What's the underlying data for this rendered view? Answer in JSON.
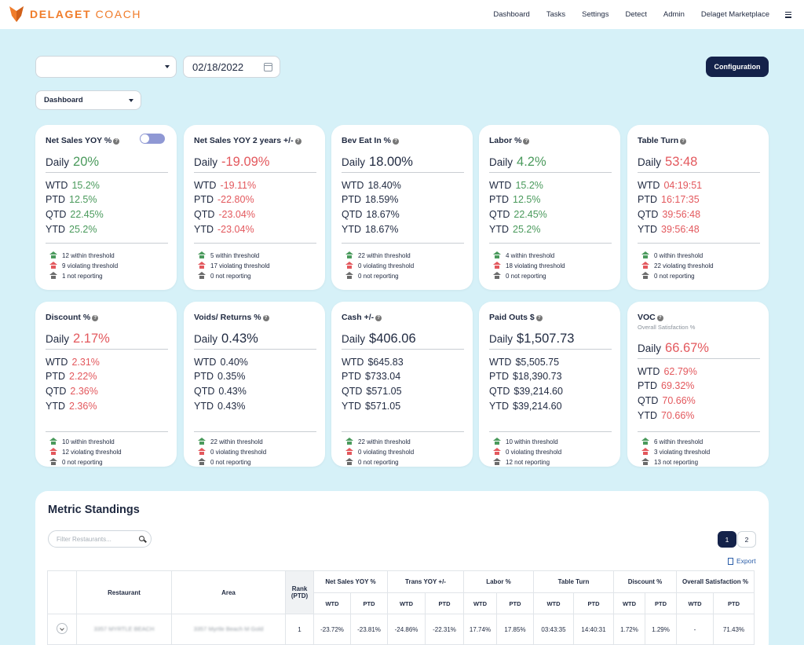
{
  "brand": {
    "name_bold": "DELAGET",
    "name_light": " COACH",
    "logo_color": "#f07c2a"
  },
  "nav": [
    "Dashboard",
    "Tasks",
    "Settings",
    "Detect",
    "Admin",
    "Delaget Marketplace"
  ],
  "controls": {
    "date": "02/18/2022",
    "dashboard": "Dashboard",
    "configuration": "Configuration"
  },
  "colors": {
    "green": "#4a9a5c",
    "red": "#e3585d",
    "navy": "#1f2940",
    "accent": "#14224a",
    "background": "#d6f1f8"
  },
  "cards": [
    {
      "title": "Net Sales YOY %",
      "subtitle": "",
      "toggle": true,
      "daily": "20%",
      "dc": "green",
      "dsize": "big",
      "periods": [
        {
          "l": "WTD",
          "v": "15.2%",
          "c": "green"
        },
        {
          "l": "PTD",
          "v": "12.5%",
          "c": "green"
        },
        {
          "l": "QTD",
          "v": "22.45%",
          "c": "green"
        },
        {
          "l": "YTD",
          "v": "25.2%",
          "c": "green"
        }
      ],
      "thresholds": [
        "12 within threshold",
        "9 violating threshold",
        "1 not reporting"
      ]
    },
    {
      "title": "Net Sales YOY 2 years +/-",
      "subtitle": "",
      "daily": "-19.09%",
      "dc": "red",
      "dsize": "big",
      "periods": [
        {
          "l": "WTD",
          "v": "-19.11%",
          "c": "red"
        },
        {
          "l": "PTD",
          "v": "-22.80%",
          "c": "red"
        },
        {
          "l": "QTD",
          "v": "-23.04%",
          "c": "red"
        },
        {
          "l": "YTD",
          "v": "-23.04%",
          "c": "red"
        }
      ],
      "thresholds": [
        "5 within threshold",
        "17 violating threshold",
        "0 not reporting"
      ]
    },
    {
      "title": "Bev Eat In %",
      "subtitle": "",
      "daily": "18.00%",
      "dc": "navy",
      "dsize": "big",
      "periods": [
        {
          "l": "WTD",
          "v": "18.40%",
          "c": "navy"
        },
        {
          "l": "PTD",
          "v": "18.59%",
          "c": "navy"
        },
        {
          "l": "QTD",
          "v": "18.67%",
          "c": "navy"
        },
        {
          "l": "YTD",
          "v": "18.67%",
          "c": "navy"
        }
      ],
      "thresholds": [
        "22 within threshold",
        "0 violating threshold",
        "0 not reporting"
      ]
    },
    {
      "title": "Labor %",
      "subtitle": "",
      "daily": "4.2%",
      "dc": "green",
      "dsize": "big",
      "periods": [
        {
          "l": "WTD",
          "v": "15.2%",
          "c": "green"
        },
        {
          "l": "PTD",
          "v": "12.5%",
          "c": "green"
        },
        {
          "l": "QTD",
          "v": "22.45%",
          "c": "green"
        },
        {
          "l": "YTD",
          "v": "25.2%",
          "c": "green"
        }
      ],
      "thresholds": [
        "4 within threshold",
        "18 violating threshold",
        "0 not reporting"
      ]
    },
    {
      "title": "Table Turn",
      "subtitle": "",
      "daily": "53:48",
      "dc": "red",
      "dsize": "big",
      "periods": [
        {
          "l": "WTD",
          "v": "04:19:51",
          "c": "red"
        },
        {
          "l": "PTD",
          "v": "16:17:35",
          "c": "red"
        },
        {
          "l": "QTD",
          "v": "39:56:48",
          "c": "red"
        },
        {
          "l": "YTD",
          "v": "39:56:48",
          "c": "red"
        }
      ],
      "thresholds": [
        "0 within threshold",
        "22 violating threshold",
        "0 not reporting"
      ]
    },
    {
      "title": "Discount %",
      "subtitle": "",
      "daily": "2.17%",
      "dc": "red",
      "dsize": "big",
      "periods": [
        {
          "l": "WTD",
          "v": "2.31%",
          "c": "red"
        },
        {
          "l": "PTD",
          "v": "2.22%",
          "c": "red"
        },
        {
          "l": "QTD",
          "v": "2.36%",
          "c": "red"
        },
        {
          "l": "YTD",
          "v": "2.36%",
          "c": "red"
        }
      ],
      "thresholds": [
        "10 within threshold",
        "12 violating threshold",
        "0 not reporting"
      ]
    },
    {
      "title": "Voids/ Returns %",
      "subtitle": "",
      "daily": "0.43%",
      "dc": "navy",
      "dsize": "big",
      "periods": [
        {
          "l": "WTD",
          "v": "0.40%",
          "c": "navy"
        },
        {
          "l": "PTD",
          "v": "0.35%",
          "c": "navy"
        },
        {
          "l": "QTD",
          "v": "0.43%",
          "c": "navy"
        },
        {
          "l": "YTD",
          "v": "0.43%",
          "c": "navy"
        }
      ],
      "thresholds": [
        "22 within threshold",
        "0 violating threshold",
        "0 not reporting"
      ]
    },
    {
      "title": "Cash +/-",
      "subtitle": "",
      "daily": "$406.06",
      "dc": "navy",
      "dsize": "big",
      "periods": [
        {
          "l": "WTD",
          "v": "$645.83",
          "c": "navy"
        },
        {
          "l": "PTD",
          "v": "$733.04",
          "c": "navy"
        },
        {
          "l": "QTD",
          "v": "$571.05",
          "c": "navy"
        },
        {
          "l": "YTD",
          "v": "$571.05",
          "c": "navy"
        }
      ],
      "thresholds": [
        "22 within threshold",
        "0 violating threshold",
        "0 not reporting"
      ]
    },
    {
      "title": "Paid Outs $",
      "subtitle": "",
      "daily": "$1,507.73",
      "dc": "navy",
      "dsize": "big",
      "periods": [
        {
          "l": "WTD",
          "v": "$5,505.75",
          "c": "navy"
        },
        {
          "l": "PTD",
          "v": "$18,390.73",
          "c": "navy"
        },
        {
          "l": "QTD",
          "v": "$39,214.60",
          "c": "navy"
        },
        {
          "l": "YTD",
          "v": "$39,214.60",
          "c": "navy"
        }
      ],
      "thresholds": [
        "10 within threshold",
        "0 violating threshold",
        "12 not reporting"
      ]
    },
    {
      "title": "VOC",
      "subtitle": "Overall Satisfaction %",
      "daily": "66.67%",
      "dc": "red",
      "dsize": "big",
      "periods": [
        {
          "l": "WTD",
          "v": "62.79%",
          "c": "red"
        },
        {
          "l": "PTD",
          "v": "69.32%",
          "c": "red"
        },
        {
          "l": "QTD",
          "v": "70.66%",
          "c": "red"
        },
        {
          "l": "YTD",
          "v": "70.66%",
          "c": "red"
        }
      ],
      "thresholds": [
        "6 within threshold",
        "3 violating threshold",
        "13 not reporting"
      ]
    }
  ],
  "daily_label": "Daily",
  "standings": {
    "title": "Metric Standings",
    "filter_placeholder": "Filter Restaurants...",
    "pages": [
      "1",
      "2"
    ],
    "export": "Export",
    "headers": {
      "restaurant": "Restaurant",
      "area": "Area",
      "rank": "Rank (PTD)",
      "groups": [
        "Net Sales YOY %",
        "Trans YOY +/-",
        "Labor %",
        "Table Turn",
        "Discount %",
        "Overall Satisfaction %"
      ],
      "sub": [
        "WTD",
        "PTD"
      ]
    },
    "row": {
      "restaurant": "3357 MYRTLE BEACH",
      "area": "3357 Myrtle Beach M Gold",
      "rank": "1",
      "values": [
        {
          "v": "-23.72%",
          "c": "navy"
        },
        {
          "v": "-23.81%",
          "c": "navy"
        },
        {
          "v": "-24.86%",
          "c": "navy"
        },
        {
          "v": "-22.31%",
          "c": "navy"
        },
        {
          "v": "17.74%",
          "c": "navy"
        },
        {
          "v": "17.85%",
          "c": "navy"
        },
        {
          "v": "03:43:35",
          "c": "red"
        },
        {
          "v": "14:40:31",
          "c": "red"
        },
        {
          "v": "1.72%",
          "c": "navy"
        },
        {
          "v": "1.29%",
          "c": "navy"
        },
        {
          "v": "-",
          "c": "navy"
        },
        {
          "v": "71.43%",
          "c": "red"
        }
      ]
    }
  }
}
